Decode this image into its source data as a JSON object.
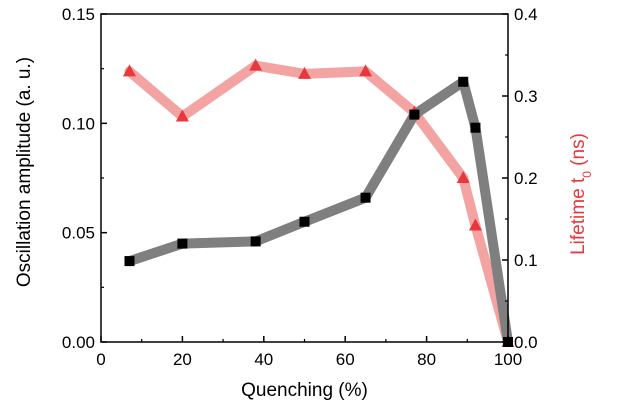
{
  "colors": {
    "left_series": "#7f7f7f",
    "left_marker": "#000000",
    "right_series": "#f4a3a3",
    "right_marker": "#e8383d",
    "right_axis_label": "#e8383d",
    "axis": "#000000"
  },
  "chart_data": {
    "type": "line",
    "xlabel": "Quenching (%)",
    "ylabel_left": "Oscillation amplitude (a. u.)",
    "ylabel_right_main": "Lifetime t",
    "ylabel_right_sub": "0",
    "ylabel_right_suffix": " (ns)",
    "xlim": [
      0,
      100
    ],
    "ylim_left": [
      0.0,
      0.15
    ],
    "ylim_right": [
      0.0,
      0.4
    ],
    "x_ticks": [
      0,
      20,
      40,
      60,
      80,
      100
    ],
    "x_tick_labels": [
      "0",
      "20",
      "40",
      "60",
      "80",
      "100"
    ],
    "y_left_ticks": [
      0.0,
      0.05,
      0.1,
      0.15
    ],
    "y_left_tick_labels": [
      "0.00",
      "0.05",
      "0.10",
      "0.15"
    ],
    "y_right_ticks": [
      0.0,
      0.1,
      0.2,
      0.3,
      0.4
    ],
    "y_right_tick_labels": [
      "0.0",
      "0.1",
      "0.2",
      "0.3",
      "0.4"
    ],
    "grid": false,
    "series": [
      {
        "axis": "left",
        "marker": "square",
        "x": [
          7,
          20,
          38,
          50,
          65,
          77,
          89,
          92,
          100
        ],
        "y": [
          0.037,
          0.045,
          0.046,
          0.055,
          0.066,
          0.104,
          0.119,
          0.098,
          0.0
        ]
      },
      {
        "axis": "right",
        "marker": "triangle",
        "x": [
          7,
          20,
          38,
          50,
          65,
          77,
          89,
          92,
          100
        ],
        "y": [
          0.33,
          0.275,
          0.337,
          0.327,
          0.33,
          0.28,
          0.2,
          0.142,
          0.0
        ]
      }
    ]
  }
}
